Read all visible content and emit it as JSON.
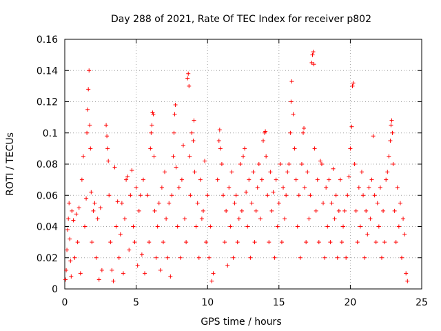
{
  "chart_data": {
    "type": "scatter",
    "title": "Day 288 of 2021, Rate Of TEC Index for receiver p802",
    "xlabel": "GPS time / hours",
    "ylabel": "ROTI / TECUs",
    "xlim": [
      0,
      25
    ],
    "ylim": [
      0,
      0.16
    ],
    "x_ticks": [
      0,
      5,
      10,
      15,
      20,
      25
    ],
    "y_ticks": [
      0,
      0.02,
      0.04,
      0.06,
      0.08,
      0.1,
      0.12,
      0.14,
      0.16
    ],
    "x_tick_labels": [
      "0",
      "5",
      "10",
      "15",
      "20",
      "25"
    ],
    "y_tick_labels": [
      "0",
      "0.02",
      "0.04",
      "0.06",
      "0.08",
      "0.1",
      "0.12",
      "0.14",
      "0.16"
    ],
    "grid": true,
    "marker": "+",
    "marker_color": "#ff0000",
    "series": [
      {
        "points": [
          [
            0.05,
            0.006
          ],
          [
            0.1,
            0.012
          ],
          [
            0.15,
            0.025
          ],
          [
            0.2,
            0.038
          ],
          [
            0.25,
            0.045
          ],
          [
            0.3,
            0.055
          ],
          [
            0.35,
            0.032
          ],
          [
            0.4,
            0.018
          ],
          [
            0.45,
            0.008
          ],
          [
            0.5,
            0.05
          ],
          [
            0.6,
            0.044
          ],
          [
            0.7,
            0.02
          ],
          [
            0.8,
            0.048
          ],
          [
            0.9,
            0.03
          ],
          [
            1.0,
            0.052
          ],
          [
            1.1,
            0.01
          ],
          [
            1.2,
            0.07
          ],
          [
            1.3,
            0.085
          ],
          [
            1.4,
            0.04
          ],
          [
            1.5,
            0.058
          ],
          [
            1.55,
            0.1
          ],
          [
            1.6,
            0.115
          ],
          [
            1.65,
            0.128
          ],
          [
            1.7,
            0.14
          ],
          [
            1.75,
            0.105
          ],
          [
            1.8,
            0.09
          ],
          [
            1.85,
            0.062
          ],
          [
            1.9,
            0.03
          ],
          [
            2.0,
            0.05
          ],
          [
            2.1,
            0.055
          ],
          [
            2.2,
            0.02
          ],
          [
            2.3,
            0.045
          ],
          [
            2.4,
            0.006
          ],
          [
            2.5,
            0.052
          ],
          [
            2.6,
            0.012
          ],
          [
            2.9,
            0.105
          ],
          [
            2.95,
            0.098
          ],
          [
            3.0,
            0.09
          ],
          [
            3.05,
            0.082
          ],
          [
            3.1,
            0.06
          ],
          [
            3.2,
            0.03
          ],
          [
            3.3,
            0.012
          ],
          [
            3.4,
            0.005
          ],
          [
            3.5,
            0.078
          ],
          [
            3.6,
            0.04
          ],
          [
            3.7,
            0.056
          ],
          [
            3.8,
            0.02
          ],
          [
            3.9,
            0.035
          ],
          [
            4.0,
            0.055
          ],
          [
            4.1,
            0.01
          ],
          [
            4.2,
            0.045
          ],
          [
            4.3,
            0.07
          ],
          [
            4.4,
            0.072
          ],
          [
            4.5,
            0.025
          ],
          [
            4.6,
            0.06
          ],
          [
            4.7,
            0.076
          ],
          [
            4.8,
            0.04
          ],
          [
            4.9,
            0.03
          ],
          [
            5.0,
            0.065
          ],
          [
            5.1,
            0.015
          ],
          [
            5.2,
            0.05
          ],
          [
            5.3,
            0.06
          ],
          [
            5.4,
            0.022
          ],
          [
            5.5,
            0.07
          ],
          [
            5.6,
            0.01
          ],
          [
            5.8,
            0.06
          ],
          [
            5.9,
            0.03
          ],
          [
            6.0,
            0.09
          ],
          [
            6.05,
            0.1
          ],
          [
            6.1,
            0.105
          ],
          [
            6.15,
            0.113
          ],
          [
            6.2,
            0.112
          ],
          [
            6.25,
            0.085
          ],
          [
            6.3,
            0.05
          ],
          [
            6.4,
            0.02
          ],
          [
            6.5,
            0.04
          ],
          [
            6.6,
            0.055
          ],
          [
            6.7,
            0.012
          ],
          [
            6.8,
            0.065
          ],
          [
            6.9,
            0.03
          ],
          [
            7.0,
            0.075
          ],
          [
            7.1,
            0.045
          ],
          [
            7.2,
            0.02
          ],
          [
            7.3,
            0.055
          ],
          [
            7.4,
            0.008
          ],
          [
            7.5,
            0.06
          ],
          [
            7.6,
            0.085
          ],
          [
            7.65,
            0.1
          ],
          [
            7.7,
            0.112
          ],
          [
            7.75,
            0.118
          ],
          [
            7.8,
            0.078
          ],
          [
            7.9,
            0.04
          ],
          [
            8.0,
            0.065
          ],
          [
            8.1,
            0.02
          ],
          [
            8.2,
            0.07
          ],
          [
            8.3,
            0.092
          ],
          [
            8.4,
            0.045
          ],
          [
            8.5,
            0.03
          ],
          [
            8.6,
            0.135
          ],
          [
            8.65,
            0.138
          ],
          [
            8.7,
            0.13
          ],
          [
            8.75,
            0.085
          ],
          [
            8.8,
            0.06
          ],
          [
            8.9,
            0.1
          ],
          [
            9.0,
            0.095
          ],
          [
            9.05,
            0.108
          ],
          [
            9.1,
            0.075
          ],
          [
            9.2,
            0.04
          ],
          [
            9.3,
            0.055
          ],
          [
            9.4,
            0.02
          ],
          [
            9.5,
            0.07
          ],
          [
            9.6,
            0.045
          ],
          [
            9.7,
            0.05
          ],
          [
            9.8,
            0.082
          ],
          [
            9.9,
            0.03
          ],
          [
            10.0,
            0.06
          ],
          [
            10.1,
            0.02
          ],
          [
            10.2,
            0.04
          ],
          [
            10.3,
            0.005
          ],
          [
            10.4,
            0.01
          ],
          [
            10.7,
            0.07
          ],
          [
            10.8,
            0.095
          ],
          [
            10.85,
            0.102
          ],
          [
            10.9,
            0.09
          ],
          [
            11.0,
            0.08
          ],
          [
            11.1,
            0.06
          ],
          [
            11.2,
            0.03
          ],
          [
            11.3,
            0.05
          ],
          [
            11.4,
            0.015
          ],
          [
            11.5,
            0.065
          ],
          [
            11.6,
            0.04
          ],
          [
            11.7,
            0.075
          ],
          [
            11.8,
            0.02
          ],
          [
            11.9,
            0.055
          ],
          [
            12.0,
            0.06
          ],
          [
            12.1,
            0.03
          ],
          [
            12.2,
            0.045
          ],
          [
            12.3,
            0.08
          ],
          [
            12.4,
            0.05
          ],
          [
            12.5,
            0.085
          ],
          [
            12.6,
            0.09
          ],
          [
            12.7,
            0.062
          ],
          [
            12.8,
            0.04
          ],
          [
            12.9,
            0.07
          ],
          [
            13.0,
            0.02
          ],
          [
            13.1,
            0.055
          ],
          [
            13.2,
            0.075
          ],
          [
            13.3,
            0.03
          ],
          [
            13.4,
            0.05
          ],
          [
            13.5,
            0.065
          ],
          [
            13.6,
            0.08
          ],
          [
            13.7,
            0.045
          ],
          [
            13.8,
            0.07
          ],
          [
            13.9,
            0.095
          ],
          [
            14.0,
            0.1
          ],
          [
            14.05,
            0.101
          ],
          [
            14.1,
            0.085
          ],
          [
            14.2,
            0.06
          ],
          [
            14.3,
            0.03
          ],
          [
            14.4,
            0.075
          ],
          [
            14.5,
            0.05
          ],
          [
            14.6,
            0.062
          ],
          [
            14.7,
            0.02
          ],
          [
            14.8,
            0.07
          ],
          [
            14.9,
            0.04
          ],
          [
            15.0,
            0.055
          ],
          [
            15.1,
            0.08
          ],
          [
            15.2,
            0.03
          ],
          [
            15.3,
            0.065
          ],
          [
            15.4,
            0.045
          ],
          [
            15.5,
            0.06
          ],
          [
            15.6,
            0.075
          ],
          [
            15.7,
            0.08
          ],
          [
            15.8,
            0.1
          ],
          [
            15.85,
            0.12
          ],
          [
            15.9,
            0.133
          ],
          [
            16.0,
            0.112
          ],
          [
            16.1,
            0.09
          ],
          [
            16.2,
            0.07
          ],
          [
            16.3,
            0.04
          ],
          [
            16.4,
            0.06
          ],
          [
            16.5,
            0.02
          ],
          [
            16.6,
            0.08
          ],
          [
            16.7,
            0.1
          ],
          [
            16.75,
            0.103
          ],
          [
            16.8,
            0.065
          ],
          [
            16.9,
            0.03
          ],
          [
            17.0,
            0.075
          ],
          [
            17.1,
            0.045
          ],
          [
            17.2,
            0.06
          ],
          [
            17.3,
            0.145
          ],
          [
            17.35,
            0.15
          ],
          [
            17.4,
            0.152
          ],
          [
            17.45,
            0.144
          ],
          [
            17.5,
            0.09
          ],
          [
            17.6,
            0.05
          ],
          [
            17.7,
            0.07
          ],
          [
            17.8,
            0.03
          ],
          [
            17.9,
            0.082
          ],
          [
            18.0,
            0.08
          ],
          [
            18.1,
            0.055
          ],
          [
            18.2,
            0.02
          ],
          [
            18.3,
            0.065
          ],
          [
            18.4,
            0.04
          ],
          [
            18.5,
            0.07
          ],
          [
            18.6,
            0.03
          ],
          [
            18.7,
            0.055
          ],
          [
            18.8,
            0.077
          ],
          [
            18.9,
            0.045
          ],
          [
            19.0,
            0.06
          ],
          [
            19.1,
            0.02
          ],
          [
            19.2,
            0.05
          ],
          [
            19.3,
            0.07
          ],
          [
            19.4,
            0.03
          ],
          [
            19.5,
            0.04
          ],
          [
            19.6,
            0.05
          ],
          [
            19.7,
            0.02
          ],
          [
            19.8,
            0.06
          ],
          [
            19.9,
            0.072
          ],
          [
            20.0,
            0.09
          ],
          [
            20.1,
            0.104
          ],
          [
            20.15,
            0.13
          ],
          [
            20.2,
            0.132
          ],
          [
            20.3,
            0.08
          ],
          [
            20.4,
            0.05
          ],
          [
            20.5,
            0.03
          ],
          [
            20.6,
            0.065
          ],
          [
            20.7,
            0.04
          ],
          [
            20.8,
            0.075
          ],
          [
            20.9,
            0.06
          ],
          [
            21.0,
            0.02
          ],
          [
            21.1,
            0.05
          ],
          [
            21.2,
            0.035
          ],
          [
            21.3,
            0.065
          ],
          [
            21.4,
            0.045
          ],
          [
            21.5,
            0.07
          ],
          [
            21.6,
            0.098
          ],
          [
            21.7,
            0.06
          ],
          [
            21.8,
            0.03
          ],
          [
            21.9,
            0.055
          ],
          [
            22.0,
            0.04
          ],
          [
            22.1,
            0.065
          ],
          [
            22.2,
            0.02
          ],
          [
            22.3,
            0.05
          ],
          [
            22.4,
            0.03
          ],
          [
            22.5,
            0.07
          ],
          [
            22.6,
            0.075
          ],
          [
            22.7,
            0.085
          ],
          [
            22.8,
            0.095
          ],
          [
            22.85,
            0.105
          ],
          [
            22.9,
            0.108
          ],
          [
            22.95,
            0.1
          ],
          [
            23.0,
            0.08
          ],
          [
            23.1,
            0.05
          ],
          [
            23.2,
            0.03
          ],
          [
            23.3,
            0.065
          ],
          [
            23.4,
            0.04
          ],
          [
            23.5,
            0.055
          ],
          [
            23.6,
            0.02
          ],
          [
            23.7,
            0.045
          ],
          [
            23.8,
            0.035
          ],
          [
            23.9,
            0.01
          ],
          [
            24.0,
            0.005
          ]
        ]
      }
    ]
  }
}
